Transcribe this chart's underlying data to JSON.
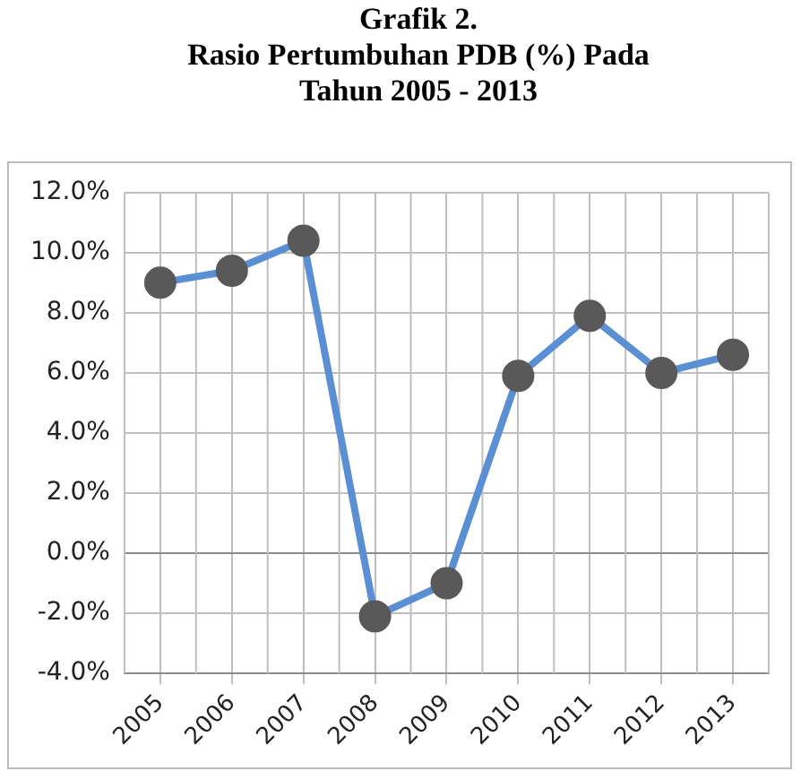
{
  "chart_data": {
    "type": "line",
    "title": "Grafik 2.\nRasio Pertumbuhan PDB (%) Pada\nTahun 2005 - 2013",
    "categories": [
      "2005",
      "2006",
      "2007",
      "2008",
      "2009",
      "2010",
      "2011",
      "2012",
      "2013"
    ],
    "series": [
      {
        "color": "#5b8fd4",
        "values": [
          9.0,
          9.4,
          10.4,
          -2.1,
          -1.0,
          5.9,
          7.9,
          6.0,
          6.6
        ]
      }
    ],
    "ylim": [
      -4,
      12
    ],
    "yticks": [
      {
        "value": -4,
        "label": "-4.0%"
      },
      {
        "value": -2,
        "label": "-2.0%"
      },
      {
        "value": 0,
        "label": "0.0%"
      },
      {
        "value": 2,
        "label": "2.0%"
      },
      {
        "value": 4,
        "label": "4.0%"
      },
      {
        "value": 6,
        "label": "6.0%"
      },
      {
        "value": 8,
        "label": "8.0%"
      },
      {
        "value": 10,
        "label": "10.0%"
      },
      {
        "value": 12,
        "label": "12.0%"
      }
    ],
    "grid": true,
    "legend": false,
    "marker": "circle",
    "line_style": "solid"
  }
}
